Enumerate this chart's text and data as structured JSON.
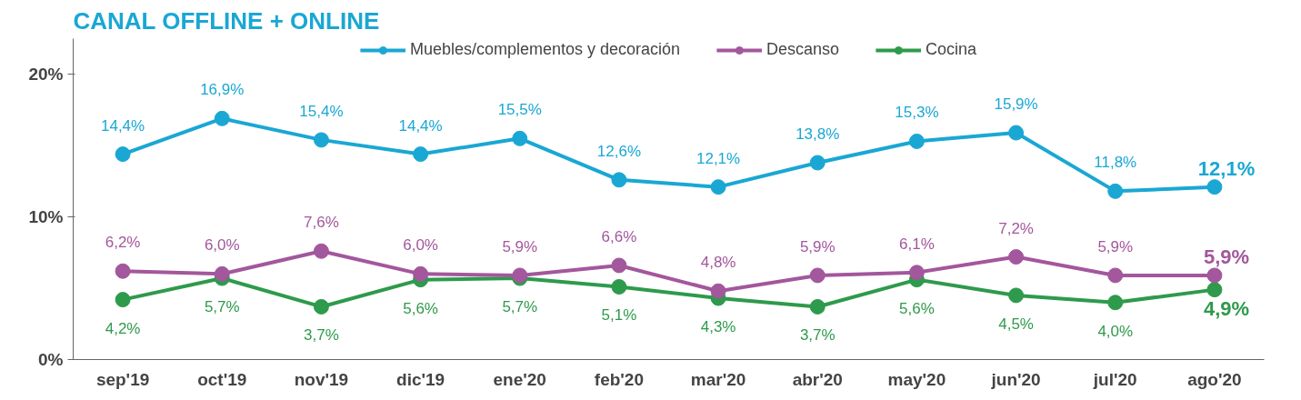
{
  "chart_data": {
    "type": "line",
    "title": "CANAL OFFLINE + ONLINE",
    "categories": [
      "sep'19",
      "oct'19",
      "nov'19",
      "dic'19",
      "ene'20",
      "feb'20",
      "mar'20",
      "abr'20",
      "may'20",
      "jun'20",
      "jul'20",
      "ago'20"
    ],
    "series": [
      {
        "name": "Muebles/complementos y decoración",
        "color": "#1aa7d4",
        "values": [
          14.4,
          16.9,
          15.4,
          14.4,
          15.5,
          12.6,
          12.1,
          13.8,
          15.3,
          15.9,
          11.8,
          12.1
        ],
        "value_labels": [
          "14,4%",
          "16,9%",
          "15,4%",
          "14,4%",
          "15,5%",
          "12,6%",
          "12,1%",
          "13,8%",
          "15,3%",
          "15,9%",
          "11,8%",
          "12,1%"
        ]
      },
      {
        "name": "Descanso",
        "color": "#a3579c",
        "values": [
          6.2,
          6.0,
          7.6,
          6.0,
          5.9,
          6.6,
          4.8,
          5.9,
          6.1,
          7.2,
          5.9,
          5.9
        ],
        "value_labels": [
          "6,2%",
          "6,0%",
          "7,6%",
          "6,0%",
          "5,9%",
          "6,6%",
          "4,8%",
          "5,9%",
          "6,1%",
          "7,2%",
          "5,9%",
          "5,9%"
        ]
      },
      {
        "name": "Cocina",
        "color": "#2e9a4c",
        "values": [
          4.2,
          5.7,
          3.7,
          5.6,
          5.7,
          5.1,
          4.3,
          3.7,
          5.6,
          4.5,
          4.0,
          4.9
        ],
        "value_labels": [
          "4,2%",
          "5,7%",
          "3,7%",
          "5,6%",
          "5,7%",
          "5,1%",
          "4,3%",
          "3,7%",
          "5,6%",
          "4,5%",
          "4,0%",
          "4,9%"
        ]
      }
    ],
    "ylim": [
      0,
      22.5
    ],
    "yticks": [
      {
        "value": 0,
        "label": "0%"
      },
      {
        "value": 10,
        "label": "10%"
      },
      {
        "value": 20,
        "label": "20%"
      }
    ],
    "grid": false,
    "legend": "top",
    "marker": "circle",
    "line_style": "solid"
  }
}
